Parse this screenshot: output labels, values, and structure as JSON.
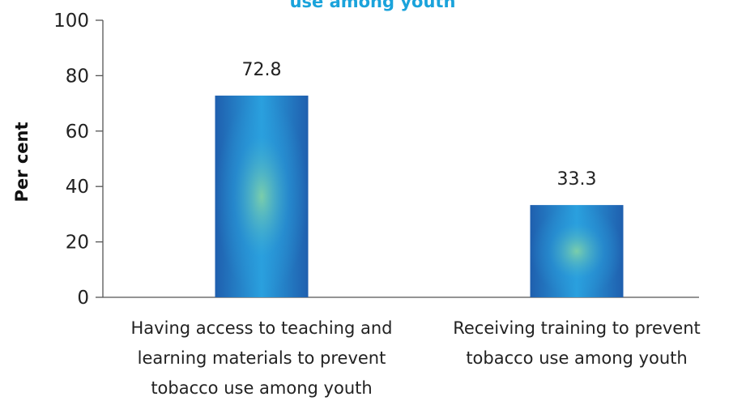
{
  "chart_data": {
    "type": "bar",
    "title": "use among youth",
    "ylabel": "Per cent",
    "xlabel": "",
    "ylim": [
      0,
      100
    ],
    "yticks": [
      0,
      20,
      40,
      60,
      80,
      100
    ],
    "categories": [
      [
        "Having access to teaching and",
        "learning materials to prevent",
        "tobacco use among youth"
      ],
      [
        "Receiving training to prevent",
        "tobacco use among youth"
      ]
    ],
    "values": [
      72.8,
      33.3
    ],
    "value_labels": [
      "72.8",
      "33.3"
    ],
    "grid": false,
    "legend": "none",
    "colors": {
      "title": "#1aa3db",
      "bar_edge": "#1f5fae",
      "bar_mid": "#2aa0de",
      "bar_center": "#7fd0a8"
    }
  }
}
